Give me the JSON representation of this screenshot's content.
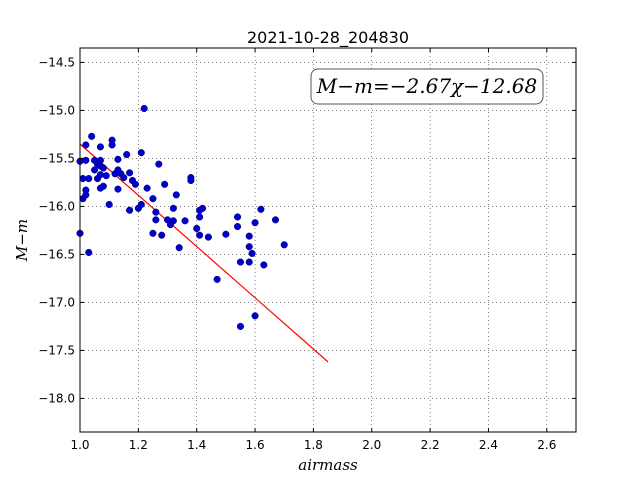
{
  "chart_data": {
    "type": "scatter",
    "title": "2021-10-28_204830",
    "xlabel": "airmass",
    "ylabel": "M−m",
    "xlim": [
      1.0,
      2.7
    ],
    "ylim": [
      -18.35,
      -14.35
    ],
    "y_inverted": true,
    "grid": true,
    "xticks": [
      1.0,
      1.2,
      1.4,
      1.6,
      1.8,
      2.0,
      2.2,
      2.4,
      2.6
    ],
    "xtick_labels": [
      "1.0",
      "1.2",
      "1.4",
      "1.6",
      "1.8",
      "2.0",
      "2.2",
      "2.4",
      "2.6"
    ],
    "yticks": [
      -14.5,
      -15.0,
      -15.5,
      -16.0,
      -16.5,
      -17.0,
      -17.5,
      -18.0
    ],
    "ytick_labels": [
      "−14.5",
      "−15.0",
      "−15.5",
      "−16.0",
      "−16.5",
      "−17.0",
      "−17.5",
      "−18.0"
    ],
    "annotation": "M−m=−2.67χ−12.68",
    "marker_color": "#0000cc",
    "fit_color": "#ff0000",
    "fit": {
      "slope": -2.67,
      "intercept": -12.68,
      "x_range": [
        1.0,
        1.85
      ]
    },
    "points": [
      {
        "x": 1.0,
        "y": -15.53
      },
      {
        "x": 1.0,
        "y": -16.28
      },
      {
        "x": 1.01,
        "y": -15.71
      },
      {
        "x": 1.01,
        "y": -15.92
      },
      {
        "x": 1.02,
        "y": -15.83
      },
      {
        "x": 1.02,
        "y": -15.88
      },
      {
        "x": 1.02,
        "y": -15.52
      },
      {
        "x": 1.02,
        "y": -15.36
      },
      {
        "x": 1.03,
        "y": -16.48
      },
      {
        "x": 1.03,
        "y": -15.71
      },
      {
        "x": 1.04,
        "y": -15.27
      },
      {
        "x": 1.05,
        "y": -15.62
      },
      {
        "x": 1.05,
        "y": -15.52
      },
      {
        "x": 1.06,
        "y": -15.56
      },
      {
        "x": 1.06,
        "y": -15.71
      },
      {
        "x": 1.07,
        "y": -15.38
      },
      {
        "x": 1.07,
        "y": -15.52
      },
      {
        "x": 1.07,
        "y": -15.58
      },
      {
        "x": 1.07,
        "y": -15.67
      },
      {
        "x": 1.07,
        "y": -15.81
      },
      {
        "x": 1.08,
        "y": -15.6
      },
      {
        "x": 1.08,
        "y": -15.79
      },
      {
        "x": 1.09,
        "y": -15.68
      },
      {
        "x": 1.1,
        "y": -15.98
      },
      {
        "x": 1.11,
        "y": -15.31
      },
      {
        "x": 1.11,
        "y": -15.36
      },
      {
        "x": 1.12,
        "y": -15.66
      },
      {
        "x": 1.13,
        "y": -15.51
      },
      {
        "x": 1.13,
        "y": -15.62
      },
      {
        "x": 1.13,
        "y": -15.82
      },
      {
        "x": 1.14,
        "y": -15.66
      },
      {
        "x": 1.15,
        "y": -15.7
      },
      {
        "x": 1.16,
        "y": -15.46
      },
      {
        "x": 1.17,
        "y": -15.65
      },
      {
        "x": 1.17,
        "y": -16.04
      },
      {
        "x": 1.18,
        "y": -15.73
      },
      {
        "x": 1.19,
        "y": -15.77
      },
      {
        "x": 1.2,
        "y": -16.02
      },
      {
        "x": 1.21,
        "y": -15.98
      },
      {
        "x": 1.21,
        "y": -15.44
      },
      {
        "x": 1.22,
        "y": -14.98
      },
      {
        "x": 1.23,
        "y": -15.81
      },
      {
        "x": 1.25,
        "y": -16.28
      },
      {
        "x": 1.25,
        "y": -15.92
      },
      {
        "x": 1.26,
        "y": -16.06
      },
      {
        "x": 1.26,
        "y": -16.14
      },
      {
        "x": 1.27,
        "y": -15.56
      },
      {
        "x": 1.28,
        "y": -16.3
      },
      {
        "x": 1.29,
        "y": -15.77
      },
      {
        "x": 1.3,
        "y": -16.14
      },
      {
        "x": 1.31,
        "y": -16.19
      },
      {
        "x": 1.32,
        "y": -16.02
      },
      {
        "x": 1.32,
        "y": -16.15
      },
      {
        "x": 1.33,
        "y": -15.88
      },
      {
        "x": 1.34,
        "y": -16.43
      },
      {
        "x": 1.36,
        "y": -16.15
      },
      {
        "x": 1.38,
        "y": -15.7
      },
      {
        "x": 1.38,
        "y": -15.73
      },
      {
        "x": 1.4,
        "y": -16.23
      },
      {
        "x": 1.41,
        "y": -16.04
      },
      {
        "x": 1.41,
        "y": -16.11
      },
      {
        "x": 1.41,
        "y": -16.3
      },
      {
        "x": 1.42,
        "y": -16.02
      },
      {
        "x": 1.44,
        "y": -16.32
      },
      {
        "x": 1.47,
        "y": -16.76
      },
      {
        "x": 1.5,
        "y": -16.29
      },
      {
        "x": 1.54,
        "y": -16.11
      },
      {
        "x": 1.54,
        "y": -16.21
      },
      {
        "x": 1.55,
        "y": -16.58
      },
      {
        "x": 1.55,
        "y": -17.25
      },
      {
        "x": 1.58,
        "y": -16.31
      },
      {
        "x": 1.58,
        "y": -16.42
      },
      {
        "x": 1.58,
        "y": -16.58
      },
      {
        "x": 1.59,
        "y": -16.49
      },
      {
        "x": 1.6,
        "y": -17.14
      },
      {
        "x": 1.6,
        "y": -16.17
      },
      {
        "x": 1.62,
        "y": -16.03
      },
      {
        "x": 1.63,
        "y": -16.61
      },
      {
        "x": 1.67,
        "y": -16.14
      },
      {
        "x": 1.7,
        "y": -16.4
      }
    ]
  }
}
